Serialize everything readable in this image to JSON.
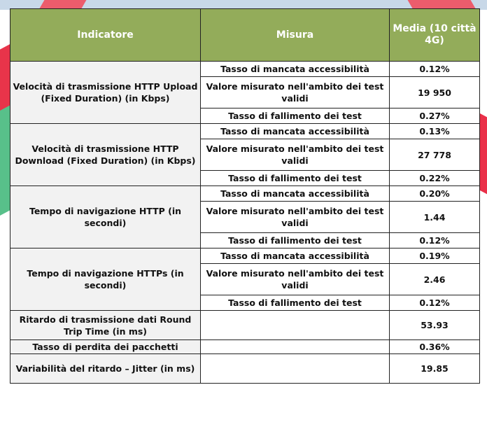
{
  "header": {
    "indicator": "Indicatore",
    "measure": "Misura",
    "average": "Media (10 città 4G)"
  },
  "measures": {
    "access": "Tasso di mancata accessibilità",
    "valid": "Valore misurato nell'ambito dei test validi",
    "failure": "Tasso di fallimento dei test"
  },
  "groups": [
    {
      "indicator": "Velocità di trasmissione HTTP Upload (Fixed Duration) (in Kbps)",
      "values": [
        "0.12%",
        "19 950",
        "0.27%"
      ]
    },
    {
      "indicator": "Velocità di trasmissione HTTP Download (Fixed Duration) (in Kbps)",
      "values": [
        "0.13%",
        "27 778",
        "0.22%"
      ]
    },
    {
      "indicator": "Tempo di navigazione HTTP (in secondi)",
      "values": [
        "0.20%",
        "1.44",
        "0.12%"
      ]
    },
    {
      "indicator": "Tempo di navigazione HTTPs (in secondi)",
      "values": [
        "0.19%",
        "2.46",
        "0.12%"
      ]
    }
  ],
  "singles": [
    {
      "indicator": "Ritardo di trasmissione dati Round Trip Time (in ms)",
      "value": "53.93"
    },
    {
      "indicator": "Tasso di perdita dei pacchetti",
      "value": "0.36%"
    },
    {
      "indicator": "Variabilità del ritardo – Jitter (in ms)",
      "value": "19.85"
    }
  ],
  "colors": {
    "header_bg": "#93ac5a",
    "indicator_bg": "#f2f2f2",
    "accent_red": "#e8344a",
    "accent_green": "#58c08a"
  }
}
